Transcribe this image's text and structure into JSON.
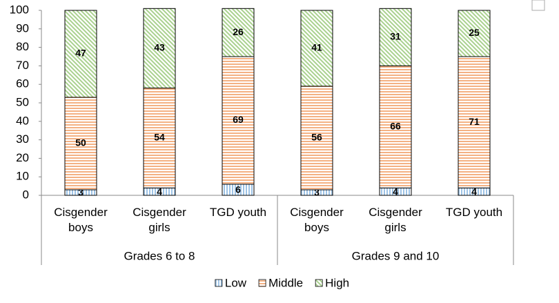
{
  "chart_data": {
    "type": "stacked-bar",
    "categories": [
      "Cisgender boys",
      "Cisgender girls",
      "TGD youth",
      "Cisgender boys",
      "Cisgender girls",
      "TGD youth"
    ],
    "group_labels": [
      "Grades 6 to 8",
      "Grades 9 and 10"
    ],
    "series": [
      {
        "name": "Low",
        "color": "#9dc3e6",
        "values": [
          3,
          4,
          6,
          3,
          4,
          4
        ]
      },
      {
        "name": "Middle",
        "color": "#f4b183",
        "values": [
          50,
          54,
          69,
          56,
          66,
          71
        ]
      },
      {
        "name": "High",
        "color": "#a9d18e",
        "values": [
          47,
          43,
          26,
          41,
          31,
          25
        ]
      }
    ],
    "ylim": [
      0,
      100
    ],
    "yticks": [
      0,
      10,
      20,
      30,
      40,
      50,
      60,
      70,
      80,
      90,
      100
    ],
    "legend": "bottom"
  }
}
